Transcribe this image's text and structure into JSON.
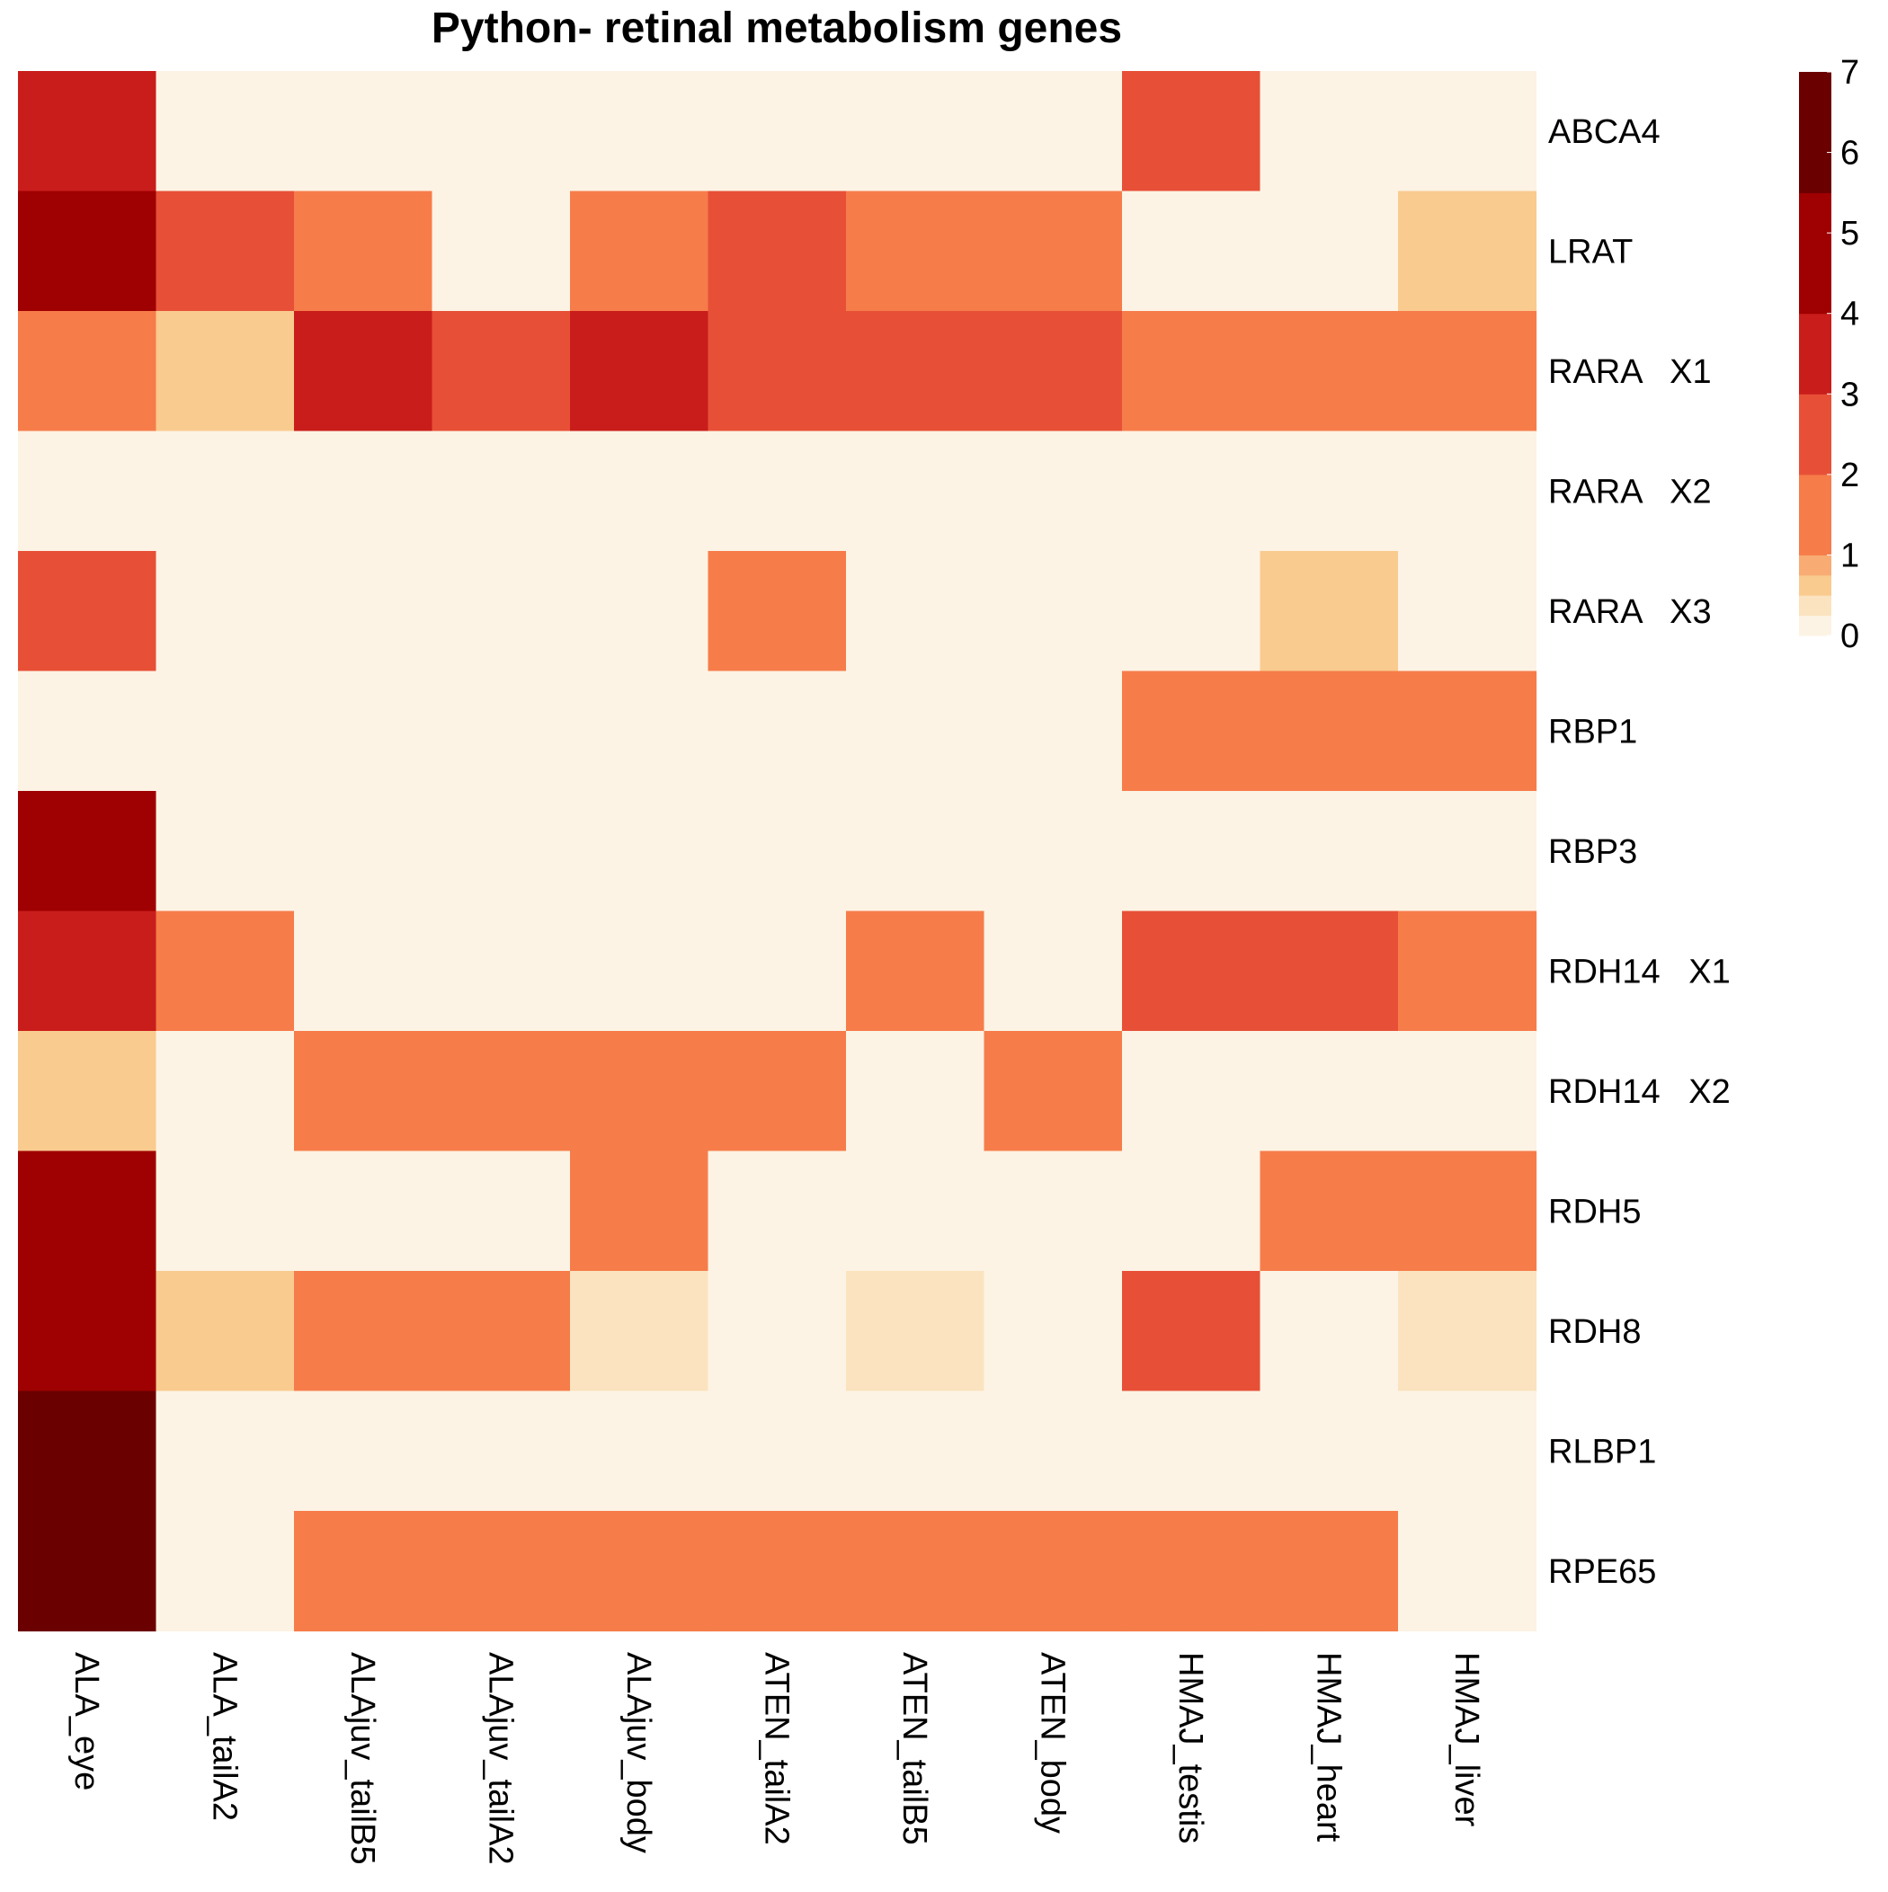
{
  "chart_data": {
    "type": "heatmap",
    "title": "Python- retinal metabolism genes",
    "rows": [
      "ABCA4",
      "LRAT",
      "RARA   X1",
      "RARA   X2",
      "RARA   X3",
      "RBP1",
      "RBP3",
      "RDH14   X1",
      "RDH14   X2",
      "RDH5",
      "RDH8",
      "RLBP1",
      "RPE65"
    ],
    "columns": [
      "ALA_eye",
      "ALA_tailA2",
      "ALAjuv_tailB5",
      "ALAjuv_tailA2",
      "ALAjuv_body",
      "ATEN_tailA2",
      "ATEN_tailB5",
      "ATEN_body",
      "HMAJ_testis",
      "HMAJ_heart",
      "HMAJ_liver"
    ],
    "values": [
      [
        3.5,
        0,
        0,
        0,
        0,
        0,
        0,
        0,
        2.5,
        0,
        0
      ],
      [
        5,
        2.5,
        1.5,
        0,
        1.5,
        2.5,
        1.5,
        1.5,
        0,
        0,
        0.5
      ],
      [
        1.5,
        0.5,
        3.5,
        2.5,
        3.5,
        2.5,
        2.5,
        2.5,
        1,
        1.5,
        1.5
      ],
      [
        0,
        0,
        0,
        0,
        0,
        0,
        0,
        0,
        0,
        0,
        0
      ],
      [
        2.5,
        0,
        0,
        0,
        0,
        1.5,
        0,
        0,
        0,
        0.5,
        0
      ],
      [
        0,
        0,
        0,
        0,
        0,
        0,
        0,
        0,
        1.5,
        1.5,
        1.5
      ],
      [
        5,
        0,
        0,
        0,
        0,
        0,
        0,
        0,
        0,
        0,
        0
      ],
      [
        3.5,
        1.5,
        0,
        0,
        0,
        0,
        1.5,
        0,
        2.5,
        2.5,
        1.5
      ],
      [
        0.5,
        0,
        1.5,
        1.5,
        1.5,
        1.5,
        0,
        1.5,
        0,
        0,
        0
      ],
      [
        5,
        0,
        0,
        0,
        1,
        0,
        0,
        0,
        0,
        1.5,
        1.5
      ],
      [
        5,
        0.5,
        1,
        1,
        0.25,
        0,
        0.25,
        0,
        2.5,
        0,
        0.25
      ],
      [
        6.5,
        0,
        0,
        0,
        0,
        0,
        0,
        0,
        0,
        0,
        0
      ],
      [
        6.5,
        0,
        1.5,
        1.5,
        1,
        1.5,
        1.5,
        1.5,
        1,
        1.5,
        0
      ]
    ],
    "colorbar": {
      "ticks": [
        "0",
        "1",
        "2",
        "3",
        "4",
        "5",
        "6",
        "7"
      ],
      "range": [
        0,
        7
      ],
      "bins": [
        {
          "from": 0,
          "to": 0.25,
          "color": "#fdf3e4"
        },
        {
          "from": 0.25,
          "to": 0.5,
          "color": "#fbe3bf"
        },
        {
          "from": 0.5,
          "to": 0.75,
          "color": "#f9cb8f"
        },
        {
          "from": 0.75,
          "to": 1,
          "color": "#f8ac74"
        },
        {
          "from": 1,
          "to": 2,
          "color": "#f67c4a"
        },
        {
          "from": 2,
          "to": 3,
          "color": "#e75037"
        },
        {
          "from": 3,
          "to": 4,
          "color": "#c91d1b"
        },
        {
          "from": 4,
          "to": 5.5,
          "color": "#9f0001"
        },
        {
          "from": 5.5,
          "to": 7,
          "color": "#6a0000"
        }
      ]
    },
    "legend_position": "top-right",
    "grid": false
  }
}
